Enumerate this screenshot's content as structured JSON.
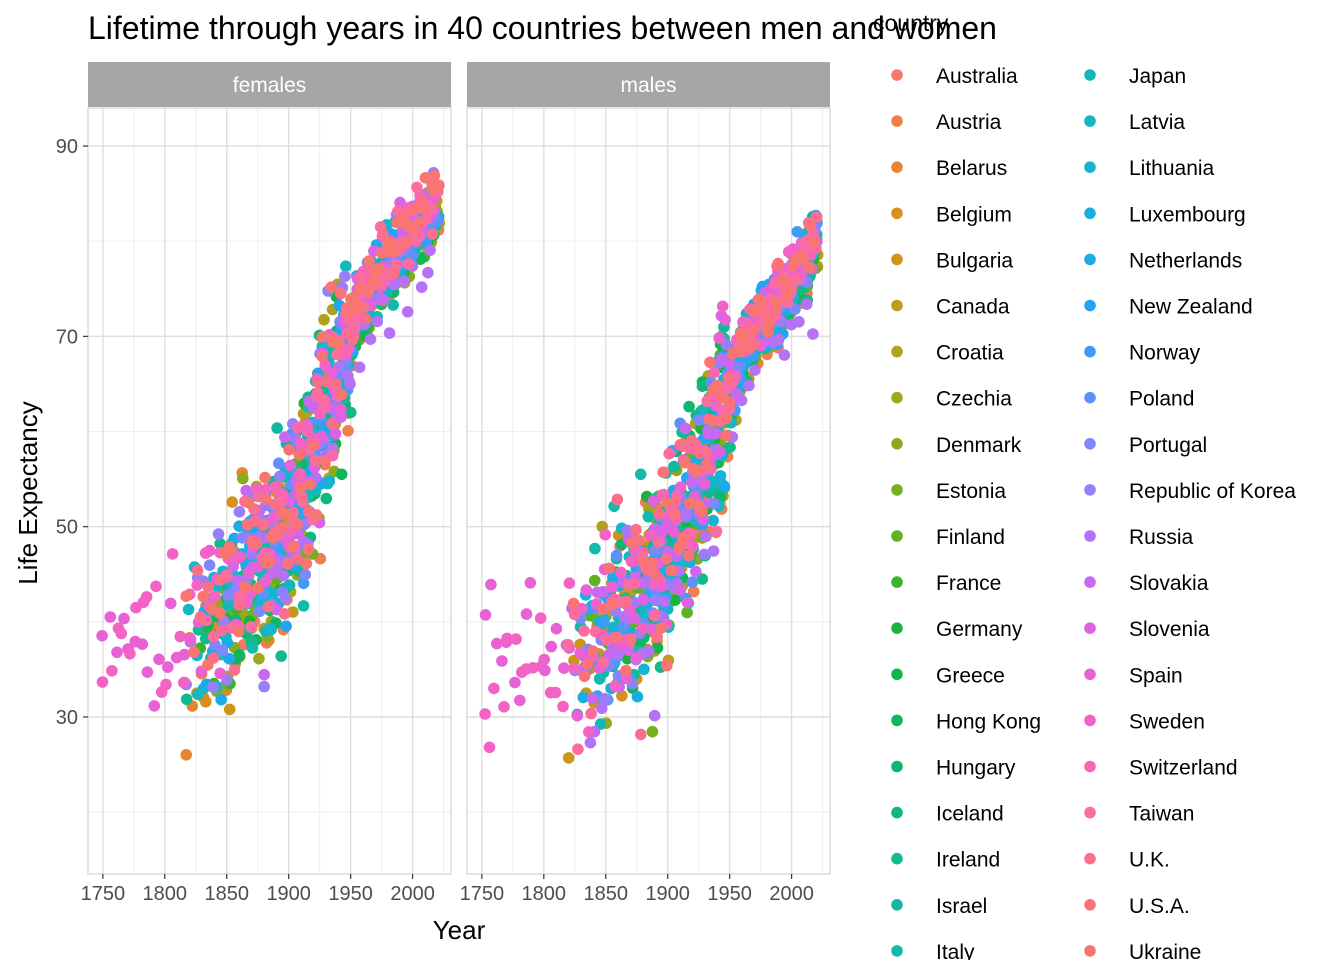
{
  "chart_data": {
    "type": "scatter",
    "title": "Lifetime through years in 40 countries between men and women",
    "xlabel": "Year",
    "ylabel": "Life Expectancy",
    "xlim": [
      1738,
      2031
    ],
    "ylim": [
      13.5,
      94
    ],
    "x_ticks": [
      "1750",
      "1800",
      "1850",
      "1900",
      "1950",
      "2000"
    ],
    "y_ticks": [
      "30",
      "50",
      "70",
      "90"
    ],
    "grid": true,
    "legend_title": "country",
    "legend_position": "right",
    "facets": [
      "females",
      "males"
    ],
    "countries": [
      "Australia",
      "Austria",
      "Belarus",
      "Belgium",
      "Bulgaria",
      "Canada",
      "Croatia",
      "Czechia",
      "Denmark",
      "Estonia",
      "Finland",
      "France",
      "Germany",
      "Greece",
      "Hong Kong",
      "Hungary",
      "Iceland",
      "Ireland",
      "Israel",
      "Italy",
      "Japan",
      "Latvia",
      "Lithuania",
      "Luxembourg",
      "Netherlands",
      "New Zealand",
      "Norway",
      "Poland",
      "Portugal",
      "Republic of Korea",
      "Russia",
      "Slovakia",
      "Slovenia",
      "Spain",
      "Sweden",
      "Switzerland",
      "Taiwan",
      "U.K.",
      "U.S.A.",
      "Ukraine"
    ],
    "series": [
      {
        "name": "Australia",
        "color": "#F8766D"
      },
      {
        "name": "Austria",
        "color": "#F07E4E"
      },
      {
        "name": "Belarus",
        "color": "#E6862E"
      },
      {
        "name": "Belgium",
        "color": "#DA8E1C"
      },
      {
        "name": "Bulgaria",
        "color": "#CD961A"
      },
      {
        "name": "Canada",
        "color": "#BE9C1B"
      },
      {
        "name": "Croatia",
        "color": "#AFA21C"
      },
      {
        "name": "Czechia",
        "color": "#9EA71E"
      },
      {
        "name": "Denmark",
        "color": "#8BAB1F"
      },
      {
        "name": "Estonia",
        "color": "#76AF20"
      },
      {
        "name": "Finland",
        "color": "#5CB324"
      },
      {
        "name": "France",
        "color": "#39B52D"
      },
      {
        "name": "Germany",
        "color": "#1BB43A"
      },
      {
        "name": "Greece",
        "color": "#12B54B"
      },
      {
        "name": "Hong Kong",
        "color": "#0FB65C"
      },
      {
        "name": "Hungary",
        "color": "#0EB76D"
      },
      {
        "name": "Iceland",
        "color": "#10B87E"
      },
      {
        "name": "Ireland",
        "color": "#12B98E"
      },
      {
        "name": "Israel",
        "color": "#13B99E"
      },
      {
        "name": "Italy",
        "color": "#13B9AD"
      },
      {
        "name": "Japan",
        "color": "#14B8BA"
      },
      {
        "name": "Latvia",
        "color": "#15B6C6"
      },
      {
        "name": "Lithuania",
        "color": "#17B3D2"
      },
      {
        "name": "Luxembourg",
        "color": "#19AFDD"
      },
      {
        "name": "Netherlands",
        "color": "#1EAAE8"
      },
      {
        "name": "New Zealand",
        "color": "#26A4F1"
      },
      {
        "name": "Norway",
        "color": "#3D9CF8"
      },
      {
        "name": "Poland",
        "color": "#5E92FB"
      },
      {
        "name": "Portugal",
        "color": "#7E88FB"
      },
      {
        "name": "Republic of Korea",
        "color": "#9A7EF9"
      },
      {
        "name": "Russia",
        "color": "#B473F6"
      },
      {
        "name": "Slovakia",
        "color": "#CA69F0"
      },
      {
        "name": "Slovenia",
        "color": "#DB63E4"
      },
      {
        "name": "Spain",
        "color": "#E861D6"
      },
      {
        "name": "Sweden",
        "color": "#F263C5"
      },
      {
        "name": "Switzerland",
        "color": "#F867B3"
      },
      {
        "name": "Taiwan",
        "color": "#FB6C9F"
      },
      {
        "name": "U.K.",
        "color": "#FC6F8B"
      },
      {
        "name": "U.S.A.",
        "color": "#FB7379"
      },
      {
        "name": "Ukraine",
        "color": "#F8766D"
      }
    ]
  },
  "colors": {
    "panel_border": "#d9d9d9",
    "grid_major": "#dedede",
    "grid_minor": "#eeeeee",
    "strip_bg": "#a6a6a6"
  }
}
